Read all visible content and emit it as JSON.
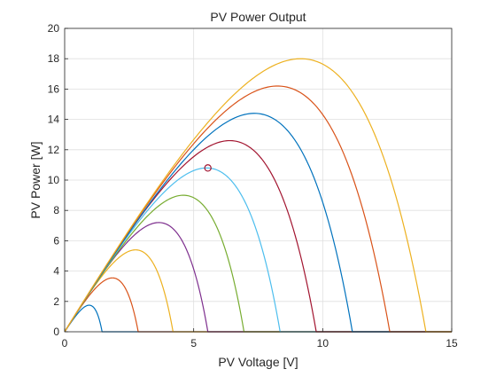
{
  "chart_data": {
    "type": "line",
    "title": "PV Power Output",
    "xlabel": "PV Voltage [V]",
    "ylabel": "PV Power [W]",
    "xlim": [
      0,
      15
    ],
    "ylim": [
      0,
      20
    ],
    "xticks": [
      0,
      5,
      10,
      15
    ],
    "yticks": [
      0,
      2,
      4,
      6,
      8,
      10,
      12,
      14,
      16,
      18,
      20
    ],
    "grid": true,
    "legend": "none",
    "series": [
      {
        "color": "#0072BD",
        "peak_voltage": 0.95,
        "peak_power": 1.75,
        "open_circuit_voltage": 1.45
      },
      {
        "color": "#D95319",
        "peak_voltage": 1.85,
        "peak_power": 3.55,
        "open_circuit_voltage": 2.85
      },
      {
        "color": "#EDB120",
        "peak_voltage": 2.75,
        "peak_power": 5.4,
        "open_circuit_voltage": 4.2
      },
      {
        "color": "#7E2F8E",
        "peak_voltage": 3.65,
        "peak_power": 7.2,
        "open_circuit_voltage": 5.55
      },
      {
        "color": "#77AC30",
        "peak_voltage": 4.6,
        "peak_power": 9.0,
        "open_circuit_voltage": 6.95
      },
      {
        "color": "#4DBEEE",
        "peak_voltage": 5.5,
        "peak_power": 10.8,
        "open_circuit_voltage": 8.35
      },
      {
        "color": "#A2142F",
        "peak_voltage": 6.4,
        "peak_power": 12.6,
        "open_circuit_voltage": 9.75
      },
      {
        "color": "#0072BD",
        "peak_voltage": 7.35,
        "peak_power": 14.4,
        "open_circuit_voltage": 11.15
      },
      {
        "color": "#D95319",
        "peak_voltage": 8.25,
        "peak_power": 16.2,
        "open_circuit_voltage": 12.6
      },
      {
        "color": "#EDB120",
        "peak_voltage": 9.15,
        "peak_power": 18.0,
        "open_circuit_voltage": 14.0
      }
    ],
    "marker": {
      "x": 5.55,
      "y": 10.8,
      "shape": "circle",
      "color": "#A2142F"
    }
  }
}
